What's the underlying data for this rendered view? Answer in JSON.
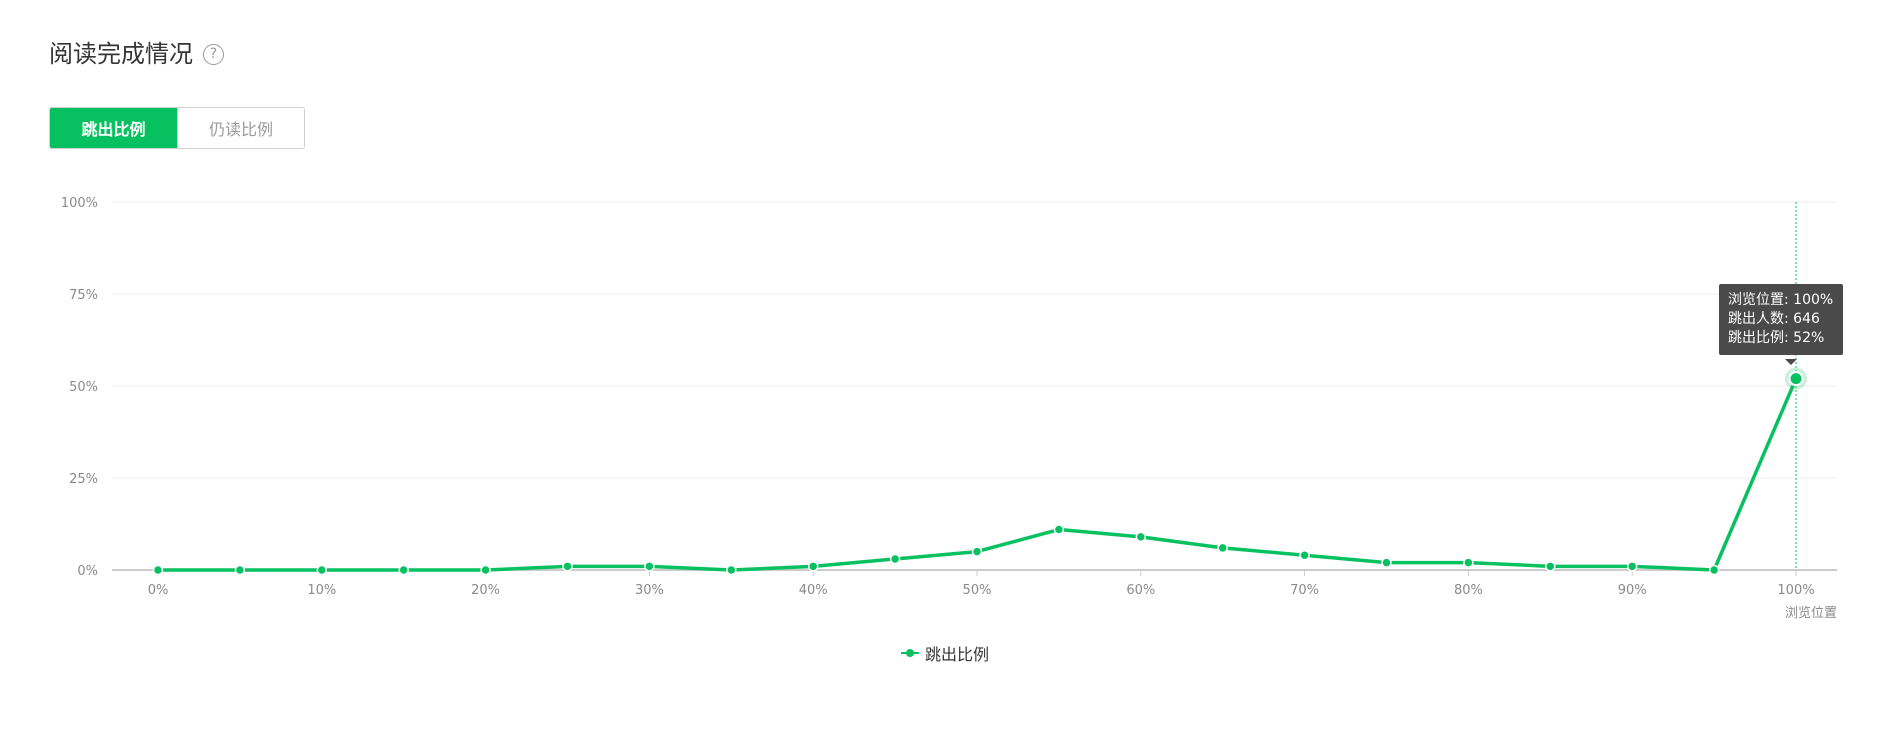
{
  "header": {
    "title": "阅读完成情况",
    "help_icon": "question-circle-icon"
  },
  "tabs": [
    {
      "label": "跳出比例",
      "active": true
    },
    {
      "label": "仍读比例",
      "active": false
    }
  ],
  "colors": {
    "accent": "#07c160",
    "grid": "#eeeeee",
    "axis": "#cccccc",
    "tooltip_bg": "#4a4a4a"
  },
  "tooltip": {
    "lines": [
      "浏览位置: 100%",
      "跳出人数: 646",
      "跳出比例: 52%"
    ]
  },
  "chart_data": {
    "type": "line",
    "x": [
      0,
      5,
      10,
      15,
      20,
      25,
      30,
      35,
      40,
      45,
      50,
      55,
      60,
      65,
      70,
      75,
      80,
      85,
      90,
      95,
      100
    ],
    "series": [
      {
        "name": "跳出比例",
        "values": [
          0,
          0,
          0,
          0,
          0,
          1,
          1,
          0,
          1,
          3,
          5,
          11,
          9,
          6,
          4,
          2,
          2,
          1,
          1,
          0,
          52
        ]
      }
    ],
    "xticks": [
      "0%",
      "10%",
      "20%",
      "30%",
      "40%",
      "50%",
      "60%",
      "70%",
      "80%",
      "90%",
      "100%"
    ],
    "yticks": [
      "0%",
      "25%",
      "50%",
      "75%",
      "100%"
    ],
    "xlabel": "浏览位置",
    "ylabel": "",
    "xlim": [
      0,
      100
    ],
    "ylim": [
      0,
      100
    ],
    "grid": true,
    "legend": "bottom-center",
    "highlight_x": 100
  }
}
